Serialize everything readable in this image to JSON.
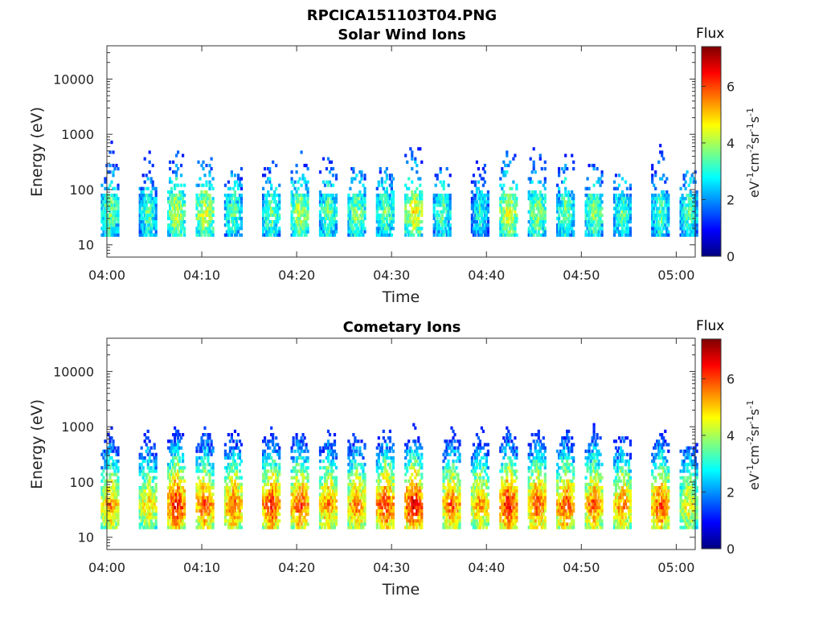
{
  "figure_title": "RPCICA151103T04.PNG",
  "colormap": [
    "#00007f",
    "#0000ff",
    "#007fff",
    "#00ffff",
    "#7fff7f",
    "#ffff00",
    "#ff7f00",
    "#ff0000",
    "#7f0000"
  ],
  "chart_data": [
    {
      "type": "heatmap",
      "title": "Solar Wind Ions",
      "xlabel": "Time",
      "ylabel": "Energy (eV)",
      "x_ticks": [
        "04:00",
        "04:10",
        "04:20",
        "04:30",
        "04:40",
        "04:50",
        "05:00"
      ],
      "xlim": [
        "04:00",
        "05:02"
      ],
      "y_scale": "log",
      "y_ticks": [
        "10",
        "100",
        "1000",
        "10000"
      ],
      "ylim": [
        6,
        40000
      ],
      "colorbar": {
        "title": "Flux",
        "label": "eV-1cm-2sr-1s-1",
        "ticks": [
          "0",
          "2",
          "4",
          "6"
        ],
        "range": [
          0,
          7.4
        ]
      },
      "bursts": [
        {
          "t": "04:00",
          "peak": 3.9,
          "max_energy": 1000
        },
        {
          "t": "04:04",
          "peak": 3.6,
          "max_energy": 450
        },
        {
          "t": "04:07",
          "peak": 4.4,
          "max_energy": 450
        },
        {
          "t": "04:10",
          "peak": 4.6,
          "max_energy": 300
        },
        {
          "t": "04:13",
          "peak": 3.6,
          "max_energy": 200
        },
        {
          "t": "04:17",
          "peak": 3.8,
          "max_energy": 300
        },
        {
          "t": "04:20",
          "peak": 4.4,
          "max_energy": 450
        },
        {
          "t": "04:23",
          "peak": 3.8,
          "max_energy": 300
        },
        {
          "t": "04:26",
          "peak": 4.0,
          "max_energy": 200
        },
        {
          "t": "04:29",
          "peak": 3.8,
          "max_energy": 200
        },
        {
          "t": "04:32",
          "peak": 4.8,
          "max_energy": 800
        },
        {
          "t": "04:35",
          "peak": 3.6,
          "max_energy": 200
        },
        {
          "t": "04:39",
          "peak": 3.2,
          "max_energy": 280
        },
        {
          "t": "04:42",
          "peak": 4.6,
          "max_energy": 500
        },
        {
          "t": "04:45",
          "peak": 4.2,
          "max_energy": 800
        },
        {
          "t": "04:48",
          "peak": 3.8,
          "max_energy": 500
        },
        {
          "t": "04:51",
          "peak": 4.0,
          "max_energy": 300
        },
        {
          "t": "04:54",
          "peak": 3.6,
          "max_energy": 500
        },
        {
          "t": "04:58",
          "peak": 3.6,
          "max_energy": 1000
        },
        {
          "t": "05:01",
          "peak": 3.6,
          "max_energy": 200
        }
      ]
    },
    {
      "type": "heatmap",
      "title": "Cometary Ions",
      "xlabel": "Time",
      "ylabel": "Energy (eV)",
      "x_ticks": [
        "04:00",
        "04:10",
        "04:20",
        "04:30",
        "04:40",
        "04:50",
        "05:00"
      ],
      "xlim": [
        "04:00",
        "05:02"
      ],
      "y_scale": "log",
      "y_ticks": [
        "10",
        "100",
        "1000",
        "10000"
      ],
      "ylim": [
        6,
        40000
      ],
      "colorbar": {
        "title": "Flux",
        "label": "eV-1cm-2sr-1s-1",
        "ticks": [
          "0",
          "2",
          "4",
          "6"
        ],
        "range": [
          0,
          7.4
        ]
      },
      "bursts": [
        {
          "t": "04:00",
          "peak": 5.6,
          "max_energy": 1000
        },
        {
          "t": "04:04",
          "peak": 5.2,
          "max_energy": 1500
        },
        {
          "t": "04:07",
          "peak": 6.6,
          "max_energy": 2500
        },
        {
          "t": "04:10",
          "peak": 6.2,
          "max_energy": 1500
        },
        {
          "t": "04:13",
          "peak": 6.0,
          "max_energy": 1500
        },
        {
          "t": "04:17",
          "peak": 6.4,
          "max_energy": 4000
        },
        {
          "t": "04:20",
          "peak": 6.2,
          "max_energy": 1200
        },
        {
          "t": "04:23",
          "peak": 5.8,
          "max_energy": 1200
        },
        {
          "t": "04:26",
          "peak": 5.8,
          "max_energy": 1000
        },
        {
          "t": "04:29",
          "peak": 6.4,
          "max_energy": 1000
        },
        {
          "t": "04:32",
          "peak": 6.8,
          "max_energy": 1000
        },
        {
          "t": "04:36",
          "peak": 6.0,
          "max_energy": 1000
        },
        {
          "t": "04:39",
          "peak": 5.6,
          "max_energy": 800
        },
        {
          "t": "04:42",
          "peak": 6.6,
          "max_energy": 2000
        },
        {
          "t": "04:45",
          "peak": 6.2,
          "max_energy": 1500
        },
        {
          "t": "04:48",
          "peak": 6.2,
          "max_energy": 1000
        },
        {
          "t": "04:51",
          "peak": 6.0,
          "max_energy": 1000
        },
        {
          "t": "04:54",
          "peak": 5.8,
          "max_energy": 600
        },
        {
          "t": "04:58",
          "peak": 6.2,
          "max_energy": 1000
        },
        {
          "t": "05:01",
          "peak": 5.0,
          "max_energy": 400
        }
      ]
    }
  ]
}
